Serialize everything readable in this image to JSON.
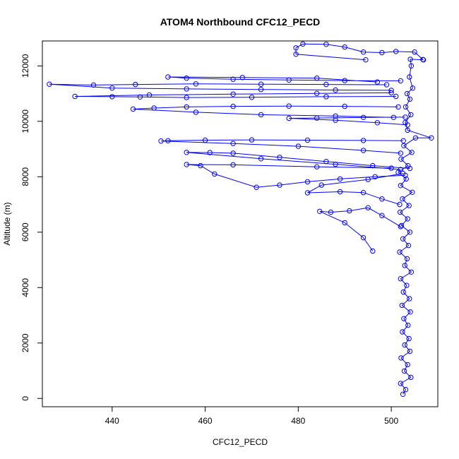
{
  "chart_data": {
    "type": "scatter",
    "title": "ATOM4 Northbound CFC12_PECD",
    "xlabel": "CFC12_PECD",
    "ylabel": "Altitude (m)",
    "xlim": [
      425,
      510
    ],
    "ylim": [
      -300,
      12900
    ],
    "xticks": [
      440,
      460,
      480,
      500
    ],
    "yticks": [
      0,
      2000,
      4000,
      6000,
      8000,
      10000,
      12000
    ],
    "grid": false,
    "legend": "none",
    "style": {
      "marker": "open-circle",
      "connected": true,
      "color": "#0000ff"
    },
    "series": [
      {
        "points": [
          [
            502.5,
            150
          ],
          [
            503.1,
            320
          ],
          [
            502.0,
            540
          ],
          [
            504.2,
            760
          ],
          [
            502.8,
            990
          ],
          [
            503.5,
            1220
          ],
          [
            502.1,
            1460
          ],
          [
            504.0,
            1700
          ],
          [
            502.9,
            1930
          ],
          [
            503.8,
            2160
          ],
          [
            502.4,
            2400
          ],
          [
            503.6,
            2640
          ],
          [
            502.7,
            2880
          ],
          [
            504.1,
            3120
          ],
          [
            502.3,
            3360
          ],
          [
            503.9,
            3600
          ],
          [
            502.6,
            3840
          ],
          [
            503.3,
            4080
          ],
          [
            502.0,
            4320
          ],
          [
            504.3,
            4560
          ],
          [
            502.9,
            4800
          ],
          [
            503.4,
            5040
          ],
          [
            501.8,
            5280
          ],
          [
            503.7,
            5520
          ],
          [
            502.5,
            5760
          ],
          [
            504.0,
            6000
          ],
          [
            502.2,
            6240
          ],
          [
            503.5,
            6480
          ],
          [
            501.9,
            6720
          ],
          [
            503.8,
            6960
          ],
          [
            502.4,
            7200
          ],
          [
            504.5,
            7440
          ],
          [
            502.0,
            7680
          ],
          [
            503.2,
            7920
          ],
          [
            501.5,
            8160
          ],
          [
            503.6,
            8400
          ],
          [
            502.1,
            8640
          ],
          [
            504.4,
            8880
          ],
          [
            502.7,
            9120
          ],
          [
            505.2,
            9400
          ],
          [
            508.6,
            9400
          ],
          [
            503.5,
            9680
          ],
          [
            503.0,
            9960
          ],
          [
            504.2,
            10240
          ],
          [
            503.1,
            10520
          ],
          [
            504.0,
            10800
          ],
          [
            503.4,
            11000
          ],
          [
            504.6,
            11200
          ],
          [
            503.9,
            11600
          ],
          [
            504.3,
            12000
          ],
          [
            504.1,
            12240
          ],
          [
            506.9,
            12220
          ]
        ]
      },
      {
        "points": [
          [
            504.0,
            8300
          ],
          [
            496.0,
            8400
          ],
          [
            486.0,
            8550
          ],
          [
            476.0,
            8700
          ],
          [
            466.0,
            8850
          ],
          [
            461.0,
            8870
          ],
          [
            456.0,
            8880
          ],
          [
            472.0,
            8650
          ],
          [
            488.0,
            8450
          ],
          [
            502.0,
            8260
          ]
        ]
      },
      {
        "points": [
          [
            502.6,
            9300
          ],
          [
            494.0,
            9310
          ],
          [
            482.0,
            9320
          ],
          [
            470.0,
            9330
          ],
          [
            460.0,
            9320
          ],
          [
            452.0,
            9300
          ],
          [
            450.5,
            9290
          ],
          [
            466.0,
            9200
          ],
          [
            480.0,
            9100
          ],
          [
            494.0,
            8950
          ],
          [
            502.0,
            8850
          ]
        ]
      },
      {
        "points": [
          [
            503.0,
            10150
          ],
          [
            494.0,
            10140
          ],
          [
            484.0,
            10120
          ],
          [
            478.0,
            10110
          ],
          [
            488.0,
            10040
          ],
          [
            497.0,
            9950
          ],
          [
            503.5,
            9870
          ]
        ]
      },
      {
        "points": [
          [
            501.5,
            10520
          ],
          [
            490.0,
            10540
          ],
          [
            478.0,
            10550
          ],
          [
            466.0,
            10540
          ],
          [
            456.0,
            10520
          ],
          [
            449.0,
            10480
          ],
          [
            444.5,
            10440
          ],
          [
            458.0,
            10330
          ],
          [
            472.0,
            10240
          ],
          [
            488.0,
            10190
          ],
          [
            500.5,
            10140
          ]
        ]
      },
      {
        "points": [
          [
            501.0,
            10900
          ],
          [
            486.0,
            10890
          ],
          [
            470.0,
            10870
          ],
          [
            456.0,
            10860
          ],
          [
            446.0,
            10880
          ],
          [
            440.0,
            10890
          ],
          [
            432.0,
            10900
          ],
          [
            448.0,
            10950
          ],
          [
            466.0,
            10980
          ],
          [
            484.0,
            11010
          ],
          [
            500.0,
            11030
          ]
        ]
      },
      {
        "points": [
          [
            499.0,
            11320
          ],
          [
            486.0,
            11330
          ],
          [
            472.0,
            11340
          ],
          [
            458.0,
            11350
          ],
          [
            445.0,
            11330
          ],
          [
            436.0,
            11310
          ],
          [
            426.5,
            11340
          ],
          [
            440.0,
            11200
          ],
          [
            456.0,
            11170
          ],
          [
            472.0,
            11150
          ],
          [
            488.0,
            11130
          ],
          [
            500.0,
            11120
          ]
        ]
      },
      {
        "points": [
          [
            502.0,
            11460
          ],
          [
            490.0,
            11470
          ],
          [
            478.0,
            11490
          ],
          [
            466.0,
            11520
          ],
          [
            456.0,
            11560
          ],
          [
            452.0,
            11600
          ],
          [
            468.0,
            11580
          ],
          [
            484.0,
            11560
          ],
          [
            497.0,
            11420
          ]
        ]
      },
      {
        "points": [
          [
            506.8,
            12230
          ],
          [
            505.0,
            12500
          ],
          [
            501.0,
            12520
          ],
          [
            498.0,
            12480
          ],
          [
            494.0,
            12500
          ],
          [
            490.0,
            12680
          ],
          [
            486.0,
            12780
          ],
          [
            481.0,
            12790
          ],
          [
            479.5,
            12650
          ],
          [
            479.5,
            12420
          ],
          [
            494.5,
            12220
          ]
        ]
      },
      {
        "points": [
          [
            502.0,
            6200
          ],
          [
            498.0,
            6600
          ],
          [
            495.0,
            6880
          ],
          [
            491.0,
            6770
          ],
          [
            487.0,
            6720
          ],
          [
            484.6,
            6750
          ],
          [
            490.0,
            6340
          ],
          [
            494.0,
            5800
          ],
          [
            496.0,
            5320
          ]
        ]
      },
      {
        "points": [
          [
            503.0,
            8050
          ],
          [
            496.5,
            8000
          ],
          [
            489.0,
            7920
          ],
          [
            482.0,
            7820
          ],
          [
            476.0,
            7700
          ],
          [
            471.0,
            7620
          ],
          [
            462.0,
            8100
          ],
          [
            459.0,
            8400
          ],
          [
            456.0,
            8440
          ],
          [
            466.0,
            8430
          ],
          [
            484.0,
            8360
          ],
          [
            500.0,
            8310
          ]
        ]
      },
      {
        "points": [
          [
            501.8,
            7000
          ],
          [
            498.0,
            7200
          ],
          [
            494.0,
            7430
          ],
          [
            489.0,
            7460
          ],
          [
            482.0,
            7420
          ],
          [
            485.0,
            7700
          ],
          [
            495.0,
            7900
          ],
          [
            502.5,
            8120
          ]
        ]
      }
    ]
  }
}
